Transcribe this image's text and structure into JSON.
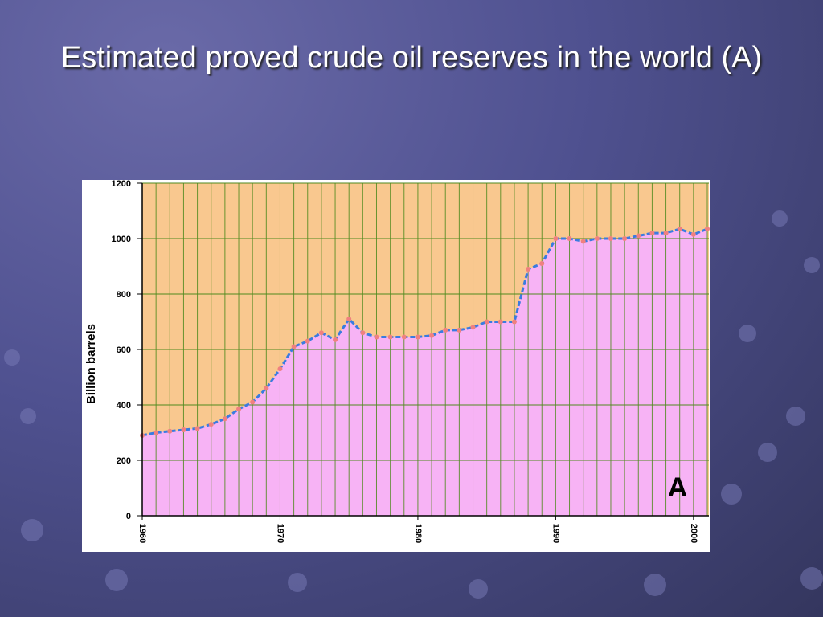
{
  "chart_data": {
    "type": "area",
    "title": "Estimated proved crude oil reserves in the world (A)",
    "y_label": "Billion barrels",
    "annotation": "A",
    "x": [
      1960,
      1961,
      1962,
      1963,
      1964,
      1965,
      1966,
      1967,
      1968,
      1969,
      1970,
      1971,
      1972,
      1973,
      1974,
      1975,
      1976,
      1977,
      1978,
      1979,
      1980,
      1981,
      1982,
      1983,
      1984,
      1985,
      1986,
      1987,
      1988,
      1989,
      1990,
      1991,
      1992,
      1993,
      1994,
      1995,
      1996,
      1997,
      1998,
      1999,
      2000,
      2001
    ],
    "values": [
      290,
      300,
      305,
      310,
      315,
      330,
      350,
      385,
      410,
      460,
      530,
      610,
      630,
      660,
      635,
      710,
      660,
      645,
      645,
      645,
      645,
      650,
      670,
      670,
      680,
      700,
      700,
      700,
      890,
      910,
      1000,
      1000,
      990,
      1000,
      1000,
      1000,
      1010,
      1020,
      1020,
      1035,
      1015,
      1035
    ],
    "line_color": "#3a7be0",
    "fill_color": "#f7b3f5",
    "background_color": "#f9c88f",
    "point_color": "#f08080",
    "xlim": [
      1960,
      2001
    ],
    "xticks": [
      1960,
      1970,
      1980,
      1990,
      2000
    ],
    "ylim": [
      0,
      1200
    ],
    "yticks": [
      0,
      200,
      400,
      600,
      800,
      1000,
      1200
    ],
    "grid": true
  }
}
